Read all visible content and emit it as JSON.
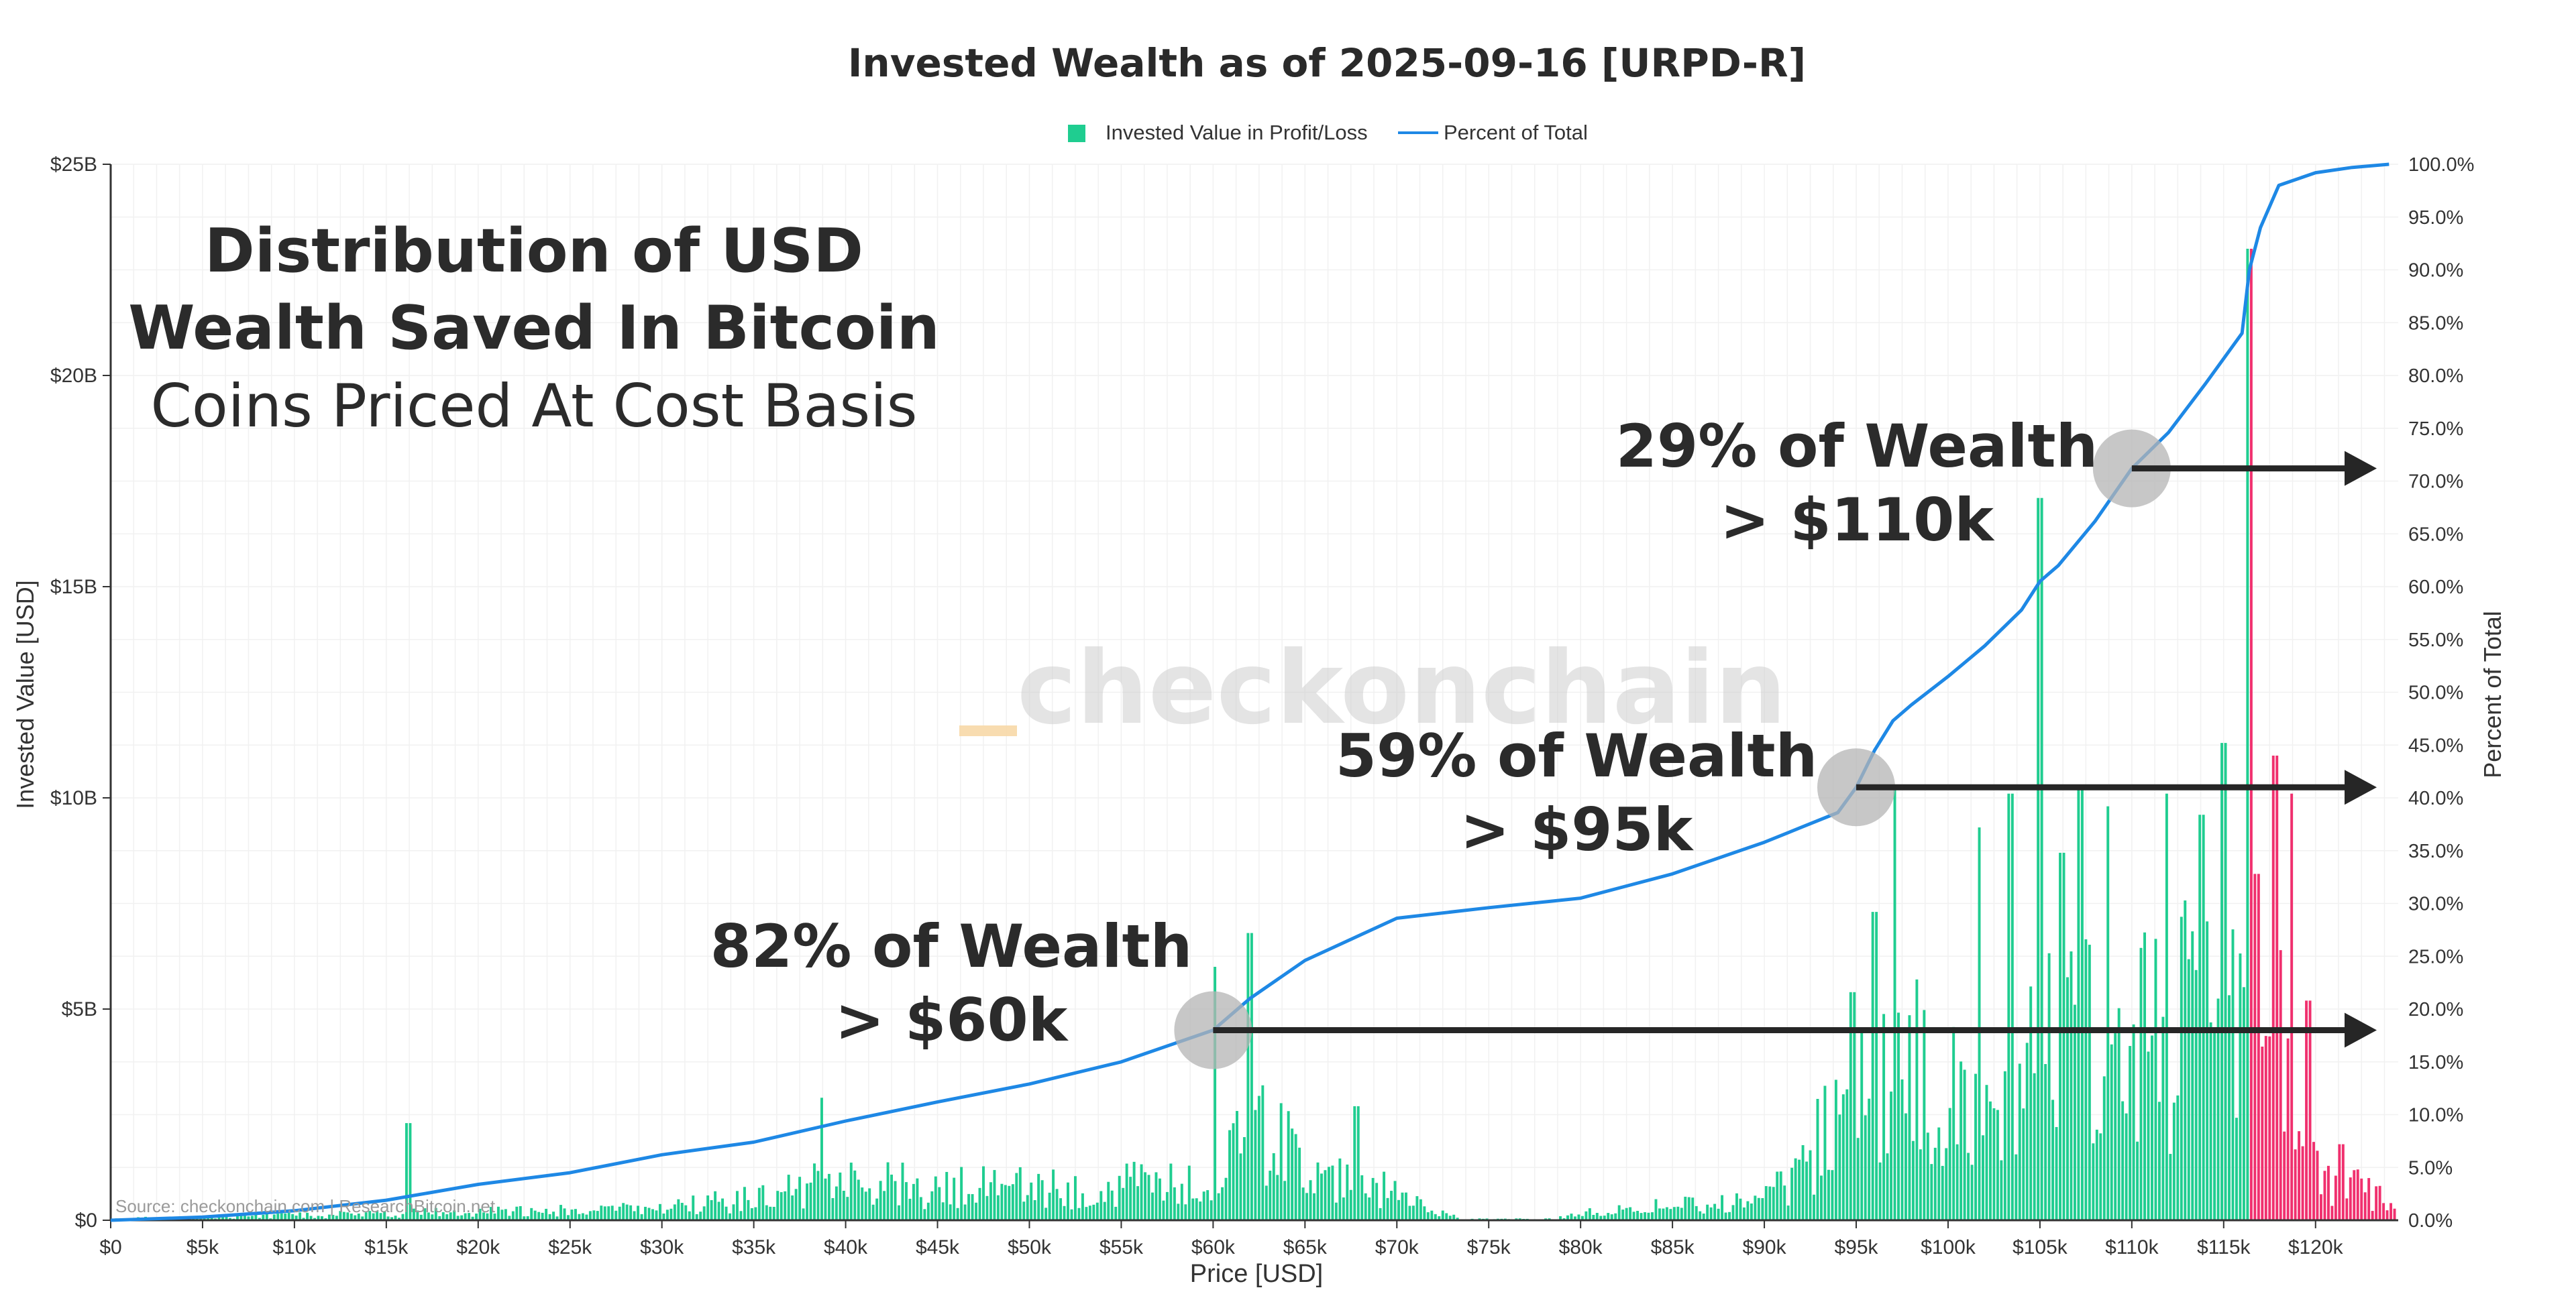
{
  "chart_data": {
    "type": "bar",
    "title": "Invested Wealth as of 2025-09-16 [URPD-R]",
    "xlabel": "Price [USD]",
    "ylabel": "Invested Value [USD]",
    "y2label": "Percent of Total",
    "xlim": [
      0,
      124500
    ],
    "ylim": [
      0,
      25000000000
    ],
    "y2lim": [
      0,
      100
    ],
    "x_ticks": [
      {
        "value": 0,
        "label": "$0"
      },
      {
        "value": 5000,
        "label": "$5k"
      },
      {
        "value": 10000,
        "label": "$10k"
      },
      {
        "value": 15000,
        "label": "$15k"
      },
      {
        "value": 20000,
        "label": "$20k"
      },
      {
        "value": 25000,
        "label": "$25k"
      },
      {
        "value": 30000,
        "label": "$30k"
      },
      {
        "value": 35000,
        "label": "$35k"
      },
      {
        "value": 40000,
        "label": "$40k"
      },
      {
        "value": 45000,
        "label": "$45k"
      },
      {
        "value": 50000,
        "label": "$50k"
      },
      {
        "value": 55000,
        "label": "$55k"
      },
      {
        "value": 60000,
        "label": "$60k"
      },
      {
        "value": 65000,
        "label": "$65k"
      },
      {
        "value": 70000,
        "label": "$70k"
      },
      {
        "value": 75000,
        "label": "$75k"
      },
      {
        "value": 80000,
        "label": "$80k"
      },
      {
        "value": 85000,
        "label": "$85k"
      },
      {
        "value": 90000,
        "label": "$90k"
      },
      {
        "value": 95000,
        "label": "$95k"
      },
      {
        "value": 100000,
        "label": "$100k"
      },
      {
        "value": 105000,
        "label": "$105k"
      },
      {
        "value": 110000,
        "label": "$110k"
      },
      {
        "value": 115000,
        "label": "$115k"
      },
      {
        "value": 120000,
        "label": "$120k"
      }
    ],
    "y_ticks": [
      {
        "value": 0,
        "label": "$0"
      },
      {
        "value": 5000000000,
        "label": "$5B"
      },
      {
        "value": 10000000000,
        "label": "$10B"
      },
      {
        "value": 15000000000,
        "label": "$15B"
      },
      {
        "value": 20000000000,
        "label": "$20B"
      },
      {
        "value": 25000000000,
        "label": "$25B"
      }
    ],
    "y2_ticks": [
      {
        "value": 0,
        "label": "0.0%"
      },
      {
        "value": 5,
        "label": "5.0%"
      },
      {
        "value": 10,
        "label": "10.0%"
      },
      {
        "value": 15,
        "label": "15.0%"
      },
      {
        "value": 20,
        "label": "20.0%"
      },
      {
        "value": 25,
        "label": "25.0%"
      },
      {
        "value": 30,
        "label": "30.0%"
      },
      {
        "value": 35,
        "label": "35.0%"
      },
      {
        "value": 40,
        "label": "40.0%"
      },
      {
        "value": 45,
        "label": "45.0%"
      },
      {
        "value": 50,
        "label": "50.0%"
      },
      {
        "value": 55,
        "label": "55.0%"
      },
      {
        "value": 60,
        "label": "60.0%"
      },
      {
        "value": 65,
        "label": "65.0%"
      },
      {
        "value": 70,
        "label": "70.0%"
      },
      {
        "value": 75,
        "label": "75.0%"
      },
      {
        "value": 80,
        "label": "80.0%"
      },
      {
        "value": 85,
        "label": "85.0%"
      },
      {
        "value": 90,
        "label": "90.0%"
      },
      {
        "value": 95,
        "label": "95.0%"
      },
      {
        "value": 100,
        "label": "100.0%"
      }
    ],
    "legend": {
      "position": "top-center",
      "entries": [
        {
          "label": "Invested Value in Profit/Loss",
          "color": "#1fcd90",
          "marker": "square"
        },
        {
          "label": "Percent of Total",
          "color": "#1e88e5",
          "marker": "line"
        }
      ]
    },
    "grid": true,
    "colors": {
      "profit": "#1fcd90",
      "loss": "#f0306e",
      "percent_line": "#1e88e5",
      "annotation_arrow": "#262626",
      "marker_circle": "#b4b4b4"
    },
    "series": [
      {
        "name": "Invested Value in Profit/Loss",
        "axis": "left",
        "kind": "bar",
        "profit_below": 116500,
        "bucket_width": 200,
        "peaks": [
          {
            "x": 16200,
            "y": 2300000000
          },
          {
            "x": 38700,
            "y": 2900000000
          },
          {
            "x": 60100,
            "y": 6000000000
          },
          {
            "x": 62000,
            "y": 6800000000
          },
          {
            "x": 67800,
            "y": 2700000000
          },
          {
            "x": 94800,
            "y": 5400000000
          },
          {
            "x": 96000,
            "y": 7300000000
          },
          {
            "x": 97100,
            "y": 10200000000
          },
          {
            "x": 101700,
            "y": 9300000000
          },
          {
            "x": 103400,
            "y": 10100000000
          },
          {
            "x": 105000,
            "y": 17100000000
          },
          {
            "x": 106200,
            "y": 8700000000
          },
          {
            "x": 107200,
            "y": 10200000000
          },
          {
            "x": 108700,
            "y": 9800000000
          },
          {
            "x": 111900,
            "y": 10100000000
          },
          {
            "x": 113800,
            "y": 9600000000
          },
          {
            "x": 115000,
            "y": 11300000000
          },
          {
            "x": 116400,
            "y": 23000000000
          },
          {
            "x": 116800,
            "y": 8200000000
          },
          {
            "x": 117800,
            "y": 11000000000
          },
          {
            "x": 118700,
            "y": 10100000000
          },
          {
            "x": 119600,
            "y": 5200000000
          },
          {
            "x": 121400,
            "y": 1800000000
          }
        ]
      },
      {
        "name": "Percent of Total",
        "axis": "right",
        "kind": "line",
        "x": [
          0,
          5000,
          10000,
          15000,
          20000,
          25000,
          30000,
          35000,
          40000,
          45000,
          50000,
          55000,
          60000,
          62000,
          65000,
          70000,
          75000,
          80000,
          85000,
          90000,
          92000,
          94000,
          95000,
          96000,
          97000,
          98000,
          100000,
          102000,
          104000,
          105000,
          106000,
          108000,
          110000,
          112000,
          114000,
          116000,
          116400,
          117000,
          118000,
          120000,
          122000,
          124000
        ],
        "y": [
          0.0,
          0.3,
          0.9,
          1.9,
          3.4,
          4.5,
          6.2,
          7.4,
          9.4,
          11.2,
          12.9,
          15.0,
          18.0,
          21.0,
          24.6,
          28.6,
          29.6,
          30.5,
          32.8,
          35.8,
          37.2,
          38.6,
          41.0,
          44.5,
          47.3,
          48.8,
          51.5,
          54.4,
          57.8,
          60.5,
          62.0,
          66.2,
          71.2,
          74.6,
          79.2,
          84.0,
          90.0,
          94.0,
          98.0,
          99.2,
          99.7,
          100.0
        ]
      }
    ],
    "annotations": [
      {
        "line1": "82% of Wealth",
        "line2": "> $60k",
        "x": 60000,
        "percent": 18.0
      },
      {
        "line1": "59% of Wealth",
        "line2": "> $95k",
        "x": 95000,
        "percent": 41.0
      },
      {
        "line1": "29% of Wealth",
        "line2": "> $110k",
        "x": 110000,
        "percent": 71.2
      }
    ],
    "panel": {
      "line1": "Distribution of USD",
      "line2": "Wealth Saved In Bitcoin",
      "line3": "Coins Priced At Cost Basis"
    },
    "watermark": "checkonchain",
    "source_note": "Source: checkonchain.com | ResearchBitcoin.net"
  }
}
